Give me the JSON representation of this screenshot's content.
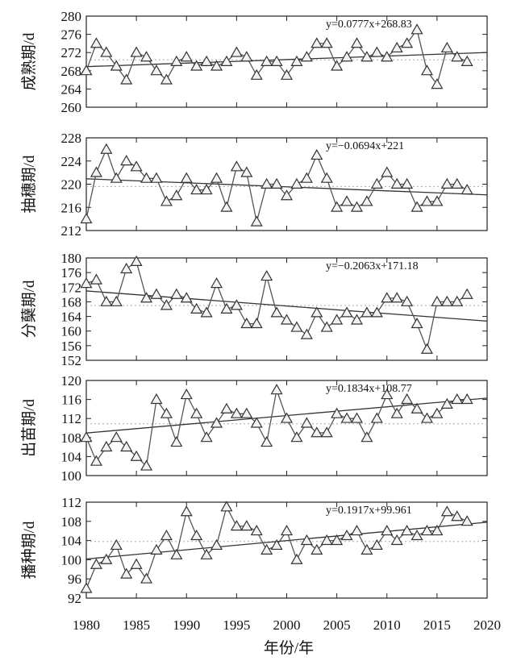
{
  "figure": {
    "xlabel": "年份/年",
    "x_ticks": [
      1980,
      1985,
      1990,
      1995,
      2000,
      2005,
      2010,
      2015,
      2020
    ],
    "xlim": [
      1980,
      2020
    ]
  },
  "chart_data": [
    {
      "type": "line",
      "ylabel": "成熟期/d",
      "ylim": [
        260,
        280
      ],
      "yticks": [
        260,
        264,
        268,
        272,
        276,
        280
      ],
      "equation": "y=0.0777x+268.83",
      "trend": {
        "slope": 0.0777,
        "intercept": 268.83
      },
      "mean": 270.4,
      "grid": false,
      "x": [
        1980,
        1981,
        1982,
        1983,
        1984,
        1985,
        1986,
        1987,
        1988,
        1989,
        1990,
        1991,
        1992,
        1993,
        1994,
        1995,
        1996,
        1997,
        1998,
        1999,
        2000,
        2001,
        2002,
        2003,
        2004,
        2005,
        2006,
        2007,
        2008,
        2009,
        2010,
        2011,
        2012,
        2013,
        2014,
        2015,
        2016,
        2017,
        2018
      ],
      "values": [
        268,
        274,
        272,
        269,
        266,
        272,
        271,
        268,
        266,
        270,
        271,
        269,
        270,
        269,
        270,
        272,
        271,
        267,
        270,
        270,
        267,
        270,
        271,
        274,
        274,
        269,
        271,
        274,
        271,
        272,
        271,
        273,
        274,
        277,
        268,
        265,
        273,
        271,
        270
      ]
    },
    {
      "type": "line",
      "ylabel": "抽穗期/d",
      "ylim": [
        212,
        228
      ],
      "yticks": [
        212,
        216,
        220,
        224,
        228
      ],
      "equation": "y=−0.0694x+221",
      "trend": {
        "slope": -0.0694,
        "intercept": 221
      },
      "mean": 219.6,
      "grid": false,
      "x": [
        1980,
        1981,
        1982,
        1983,
        1984,
        1985,
        1986,
        1987,
        1988,
        1989,
        1990,
        1991,
        1992,
        1993,
        1994,
        1995,
        1996,
        1997,
        1998,
        1999,
        2000,
        2001,
        2002,
        2003,
        2004,
        2005,
        2006,
        2007,
        2008,
        2009,
        2010,
        2011,
        2012,
        2013,
        2014,
        2015,
        2016,
        2017,
        2018
      ],
      "values": [
        214,
        222,
        226,
        221,
        224,
        223,
        221,
        221,
        217,
        218,
        221,
        219,
        219,
        221,
        216,
        223,
        222,
        213.5,
        220,
        220,
        218,
        220,
        221,
        225,
        221,
        216,
        217,
        216,
        217,
        220,
        222,
        220,
        220,
        216,
        217,
        217,
        220,
        220,
        219
      ]
    },
    {
      "type": "line",
      "ylabel": "分蘖期/d",
      "ylim": [
        152,
        180
      ],
      "yticks": [
        152,
        156,
        160,
        164,
        168,
        172,
        176,
        180
      ],
      "equation": "y=−0.2063x+171.18",
      "trend": {
        "slope": -0.2063,
        "intercept": 171.18
      },
      "mean": 167,
      "grid": false,
      "x": [
        1980,
        1981,
        1982,
        1983,
        1984,
        1985,
        1986,
        1987,
        1988,
        1989,
        1990,
        1991,
        1992,
        1993,
        1994,
        1995,
        1996,
        1997,
        1998,
        1999,
        2000,
        2001,
        2002,
        2003,
        2004,
        2005,
        2006,
        2007,
        2008,
        2009,
        2010,
        2011,
        2012,
        2013,
        2014,
        2015,
        2016,
        2017,
        2018
      ],
      "values": [
        173,
        174,
        168,
        168,
        177,
        179,
        169,
        170,
        167,
        170,
        169,
        166,
        165,
        173,
        166,
        167,
        162,
        162,
        175,
        165,
        163,
        161,
        159,
        165,
        161,
        163,
        165,
        163,
        165,
        165,
        169,
        169,
        168,
        162,
        155,
        168,
        168,
        168,
        170
      ]
    },
    {
      "type": "line",
      "ylabel": "出苗期/d",
      "ylim": [
        100,
        120
      ],
      "yticks": [
        100,
        104,
        108,
        112,
        116,
        120
      ],
      "equation": "y=0.1834x+108.77",
      "trend": {
        "slope": 0.1834,
        "intercept": 108.77
      },
      "mean": 110.9,
      "grid": false,
      "x": [
        1980,
        1981,
        1982,
        1983,
        1984,
        1985,
        1986,
        1987,
        1988,
        1989,
        1990,
        1991,
        1992,
        1993,
        1994,
        1995,
        1996,
        1997,
        1998,
        1999,
        2000,
        2001,
        2002,
        2003,
        2004,
        2005,
        2006,
        2007,
        2008,
        2009,
        2010,
        2011,
        2012,
        2013,
        2014,
        2015,
        2016,
        2017,
        2018
      ],
      "values": [
        108,
        103,
        106,
        108,
        106,
        104,
        102,
        116,
        113,
        107,
        117,
        113,
        108,
        111,
        114,
        113,
        113,
        111,
        107,
        118,
        112,
        108,
        111,
        109,
        109,
        113,
        112,
        112,
        108,
        112,
        117,
        113,
        116,
        114,
        112,
        113,
        115,
        116,
        116
      ]
    },
    {
      "type": "line",
      "ylabel": "播种期/d",
      "ylim": [
        92,
        112
      ],
      "yticks": [
        92,
        96,
        100,
        104,
        108,
        112
      ],
      "equation": "y=0.1917x+99.961",
      "trend": {
        "slope": 0.1917,
        "intercept": 99.961
      },
      "mean": 103.8,
      "grid": false,
      "x": [
        1980,
        1981,
        1982,
        1983,
        1984,
        1985,
        1986,
        1987,
        1988,
        1989,
        1990,
        1991,
        1992,
        1993,
        1994,
        1995,
        1996,
        1997,
        1998,
        1999,
        2000,
        2001,
        2002,
        2003,
        2004,
        2005,
        2006,
        2007,
        2008,
        2009,
        2010,
        2011,
        2012,
        2013,
        2014,
        2015,
        2016,
        2017,
        2018
      ],
      "values": [
        94,
        99,
        100,
        103,
        97,
        99,
        96,
        102,
        105,
        101,
        110,
        105,
        101,
        103,
        111,
        107,
        107,
        106,
        102,
        103,
        106,
        100,
        104,
        102,
        104,
        104,
        105,
        106,
        102,
        103,
        106,
        104,
        106,
        105,
        106,
        106,
        110,
        109,
        108
      ]
    }
  ]
}
